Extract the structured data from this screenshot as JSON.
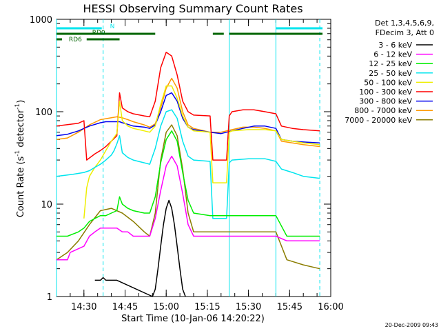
{
  "chart_data": {
    "type": "line",
    "title": "HESSI Observing Summary Count Rates",
    "xlabel": "Start Time (10-Jan-06 14:20:22)",
    "ylabel_main": "Count Rate (s",
    "ylabel_sup1": "-1",
    "ylabel_mid": " detector",
    "ylabel_sup2": "-1",
    "ylabel_end": ")",
    "yscale": "log",
    "ylim": [
      1,
      1000
    ],
    "x_range_minutes": [
      0,
      100
    ],
    "x_tick_minutes": [
      10,
      25,
      40,
      55,
      70,
      85,
      100
    ],
    "x_tick_labels": [
      "14:30",
      "14:45",
      "15:00",
      "15:15",
      "15:30",
      "15:45",
      "16:00"
    ],
    "y_ticks": [
      1,
      10,
      100,
      1000
    ],
    "y_tick_labels": [
      "1",
      "10",
      "100",
      "1000"
    ],
    "legend_header": [
      "Det 1,3,4,5,6,9,",
      "FDecim 3, Att 0"
    ],
    "legend_position": "top-right, outside plot",
    "date_stamp": "20-Dec-2009 09:43",
    "flags": [
      {
        "label": "N",
        "color": "#00e5ee",
        "intervals": [
          [
            0,
            16.5
          ],
          [
            80,
            97
          ]
        ]
      },
      {
        "label": "RD0",
        "color": "#006400",
        "intervals": [
          [
            0,
            36
          ],
          [
            57,
            61
          ],
          [
            63,
            97
          ]
        ]
      },
      {
        "label": "RD6",
        "color": "#006400",
        "intervals": [
          [
            0,
            2
          ],
          [
            11,
            23
          ]
        ]
      }
    ],
    "vertical_lines": [
      {
        "x": 0,
        "color": "#00e5ee",
        "style": "solid"
      },
      {
        "x": 17,
        "color": "#00e5ee",
        "style": "dashed"
      },
      {
        "x": 63,
        "color": "#00e5ee",
        "style": "solid"
      },
      {
        "x": 80,
        "color": "#00e5ee",
        "style": "solid"
      },
      {
        "x": 96,
        "color": "#00e5ee",
        "style": "dashed"
      }
    ],
    "series": [
      {
        "name": "3 - 6 keV",
        "color": "#000000",
        "x": [
          14,
          15,
          16,
          17,
          18,
          19,
          20,
          21,
          22,
          35,
          36,
          37,
          38,
          39,
          40,
          41,
          42,
          43,
          44,
          45,
          46,
          47
        ],
        "y": [
          1.5,
          1.5,
          1.5,
          1.6,
          1.5,
          1.5,
          1.5,
          1.5,
          1.5,
          1,
          1.2,
          2,
          3.5,
          6,
          9,
          11,
          9,
          6,
          3.5,
          2,
          1.2,
          1
        ]
      },
      {
        "name": "6 - 12 keV",
        "color": "#ff00ff",
        "x": [
          0,
          4,
          5,
          10,
          12,
          14,
          16,
          18,
          20,
          22,
          24,
          26,
          28,
          30,
          34,
          36,
          38,
          40,
          42,
          44,
          46,
          48,
          50,
          56,
          60,
          64,
          70,
          76,
          80,
          84,
          90,
          96
        ],
        "y": [
          2.5,
          2.5,
          3,
          3.5,
          4.5,
          5,
          5.5,
          5.5,
          5.5,
          5.5,
          5,
          5,
          4.5,
          4.5,
          4.5,
          7,
          14,
          26,
          33,
          26,
          13,
          6,
          4.5,
          4.5,
          4.5,
          4.5,
          4.5,
          4.5,
          4.5,
          4,
          4,
          4
        ]
      },
      {
        "name": "12 - 25 keV",
        "color": "#00ee00",
        "x": [
          0,
          4,
          8,
          10,
          12,
          14,
          16,
          18,
          20,
          22,
          23,
          24,
          26,
          28,
          32,
          34,
          36,
          38,
          40,
          42,
          44,
          46,
          48,
          50,
          56,
          60,
          64,
          70,
          76,
          80,
          84,
          90,
          96
        ],
        "y": [
          4.5,
          4.5,
          5,
          5.5,
          6.5,
          7,
          7.5,
          7.5,
          8,
          8.5,
          12,
          10,
          9,
          8.5,
          8,
          8,
          12,
          28,
          50,
          62,
          48,
          22,
          11,
          8,
          7.5,
          7.5,
          7.5,
          7.5,
          7.5,
          7.5,
          4.5,
          4.5,
          4.5
        ]
      },
      {
        "name": "25 - 50 keV",
        "color": "#00e5ee",
        "x": [
          0,
          6,
          10,
          12,
          14,
          16,
          18,
          20,
          21,
          22,
          23,
          24,
          26,
          28,
          32,
          34,
          36,
          38,
          40,
          42,
          44,
          46,
          48,
          50,
          56,
          57,
          62,
          63,
          64,
          70,
          76,
          80,
          82,
          86,
          90,
          96
        ],
        "y": [
          20,
          21,
          22,
          23,
          25,
          27,
          30,
          34,
          38,
          45,
          55,
          36,
          32,
          30,
          28,
          27,
          40,
          70,
          100,
          105,
          85,
          48,
          33,
          30,
          29,
          7,
          7,
          28,
          30,
          31,
          31,
          29,
          24,
          22,
          20,
          19
        ]
      },
      {
        "name": "50 - 100 keV",
        "color": "#eeee00",
        "x": [
          10,
          11,
          12,
          14,
          16,
          18,
          20,
          22,
          23,
          24,
          26,
          28,
          32,
          34,
          36,
          38,
          40,
          42,
          44,
          46,
          48,
          50,
          56,
          57,
          62,
          63,
          64,
          70,
          76,
          80,
          82,
          86,
          90,
          96
        ],
        "y": [
          7,
          15,
          20,
          25,
          30,
          38,
          48,
          58,
          130,
          80,
          70,
          66,
          62,
          60,
          70,
          120,
          190,
          190,
          140,
          90,
          68,
          62,
          60,
          17,
          17,
          60,
          62,
          64,
          64,
          62,
          50,
          48,
          46,
          44
        ]
      },
      {
        "name": "100 - 300 keV",
        "color": "#ff0000",
        "x": [
          0,
          8,
          10,
          11,
          14,
          16,
          18,
          20,
          22,
          23,
          24,
          26,
          28,
          32,
          34,
          36,
          38,
          40,
          42,
          44,
          46,
          48,
          50,
          56,
          57,
          62,
          63,
          64,
          68,
          72,
          76,
          80,
          82,
          86,
          90,
          96
        ],
        "y": [
          70,
          75,
          80,
          30,
          35,
          38,
          42,
          48,
          55,
          160,
          110,
          100,
          95,
          90,
          88,
          130,
          300,
          440,
          400,
          250,
          130,
          100,
          92,
          90,
          30,
          30,
          90,
          100,
          105,
          105,
          100,
          95,
          70,
          66,
          64,
          62
        ]
      },
      {
        "name": "300 - 800 keV",
        "color": "#0000ee",
        "x": [
          0,
          4,
          8,
          12,
          16,
          18,
          20,
          22,
          23,
          24,
          26,
          28,
          32,
          34,
          36,
          38,
          40,
          42,
          44,
          46,
          48,
          50,
          56,
          60,
          64,
          68,
          72,
          76,
          80,
          82,
          86,
          90,
          96
        ],
        "y": [
          55,
          57,
          62,
          70,
          76,
          78,
          78,
          78,
          78,
          76,
          73,
          70,
          68,
          66,
          72,
          100,
          150,
          160,
          130,
          85,
          68,
          64,
          60,
          58,
          62,
          66,
          70,
          70,
          66,
          50,
          48,
          47,
          46
        ]
      },
      {
        "name": "800 - 7000 keV",
        "color": "#ff9900",
        "x": [
          0,
          4,
          8,
          12,
          16,
          20,
          22,
          24,
          26,
          28,
          32,
          34,
          36,
          38,
          40,
          42,
          44,
          46,
          48,
          50,
          56,
          60,
          64,
          68,
          72,
          76,
          80,
          82,
          86,
          90,
          96
        ],
        "y": [
          50,
          52,
          60,
          72,
          82,
          86,
          88,
          86,
          82,
          78,
          72,
          68,
          74,
          110,
          180,
          230,
          180,
          100,
          72,
          66,
          60,
          60,
          64,
          68,
          68,
          66,
          62,
          48,
          46,
          44,
          42
        ]
      },
      {
        "name": "7000 - 20000 keV",
        "color": "#8b7d00",
        "x": [
          0,
          4,
          8,
          12,
          16,
          20,
          24,
          28,
          32,
          34,
          36,
          38,
          40,
          42,
          44,
          46,
          48,
          50,
          56,
          60,
          64,
          70,
          76,
          80,
          84,
          90,
          96
        ],
        "y": [
          2.5,
          3,
          4,
          6,
          8.5,
          9,
          8,
          6.5,
          5,
          4.5,
          8,
          30,
          60,
          72,
          55,
          24,
          8,
          5,
          5,
          5,
          5,
          5,
          5,
          5,
          2.5,
          2.2,
          2
        ]
      }
    ]
  }
}
